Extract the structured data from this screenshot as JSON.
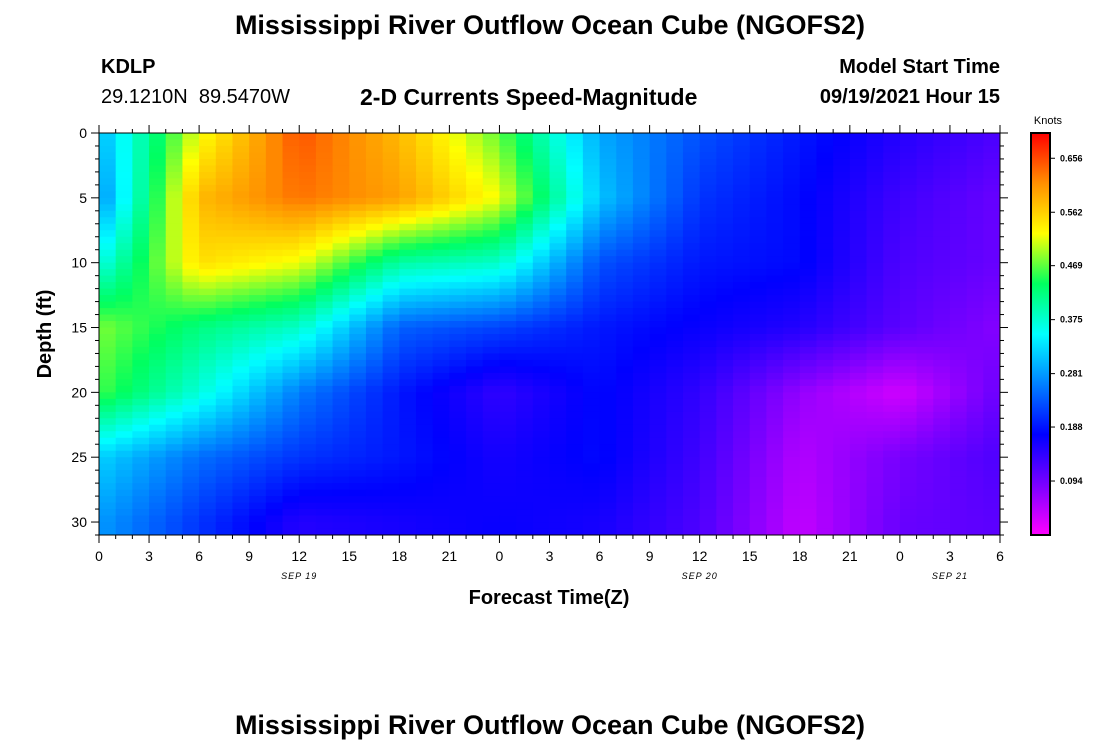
{
  "header": {
    "title": "Mississippi River Outflow Ocean Cube (NGOFS2)",
    "station_id": "KDLP",
    "coordinates": "29.1210N  89.5470W",
    "subtitle": "2-D Currents Speed-Magnitude",
    "model_start_label": "Model Start Time",
    "model_start_value": "09/19/2021 Hour 15"
  },
  "footer": {
    "title": "Mississippi River Outflow Ocean Cube (NGOFS2)"
  },
  "chart_data": {
    "type": "heatmap",
    "xlabel": "Forecast Time(Z)",
    "ylabel": "Depth (ft)",
    "x_ticks": [
      "0",
      "3",
      "6",
      "9",
      "12",
      "15",
      "18",
      "21",
      "0",
      "3",
      "6",
      "9",
      "12",
      "15",
      "18",
      "21",
      "0",
      "3",
      "6"
    ],
    "x_range_hours": [
      0,
      54
    ],
    "date_labels": [
      {
        "label": "SEP 19",
        "hour": 12
      },
      {
        "label": "SEP 20",
        "hour": 36
      },
      {
        "label": "SEP 21",
        "hour": 51
      }
    ],
    "y_ticks": [
      0,
      5,
      10,
      15,
      20,
      25,
      30
    ],
    "ylim": [
      0,
      31
    ],
    "y_inverted": true,
    "colorbar": {
      "units": "Knots",
      "ticks": [
        "0.656",
        "0.562",
        "0.469",
        "0.375",
        "0.281",
        "0.188",
        "0.094"
      ],
      "range": [
        0.0,
        0.7
      ],
      "colors": [
        "#ff00ff",
        "#7a00ff",
        "#0000ff",
        "#0080ff",
        "#00ffff",
        "#00ff60",
        "#ffff00",
        "#ff9000",
        "#ff0000"
      ]
    },
    "grid": {
      "hours": [
        0,
        6,
        12,
        18,
        24,
        30,
        36,
        42,
        48,
        54
      ],
      "depths": [
        0,
        5,
        10,
        15,
        20,
        25,
        30
      ],
      "values": [
        [
          0.3,
          0.52,
          0.65,
          0.58,
          0.47,
          0.29,
          0.23,
          0.19,
          0.15,
          0.12
        ],
        [
          0.27,
          0.58,
          0.63,
          0.6,
          0.52,
          0.31,
          0.21,
          0.18,
          0.13,
          0.1
        ],
        [
          0.36,
          0.55,
          0.52,
          0.4,
          0.38,
          0.23,
          0.19,
          0.18,
          0.12,
          0.1
        ],
        [
          0.48,
          0.42,
          0.38,
          0.24,
          0.22,
          0.19,
          0.17,
          0.15,
          0.11,
          0.08
        ],
        [
          0.46,
          0.37,
          0.26,
          0.19,
          0.14,
          0.18,
          0.14,
          0.07,
          0.03,
          0.1
        ],
        [
          0.32,
          0.25,
          0.21,
          0.19,
          0.16,
          0.18,
          0.13,
          0.05,
          0.09,
          0.12
        ],
        [
          0.28,
          0.21,
          0.15,
          0.16,
          0.17,
          0.16,
          0.12,
          0.04,
          0.1,
          0.11
        ]
      ]
    }
  }
}
